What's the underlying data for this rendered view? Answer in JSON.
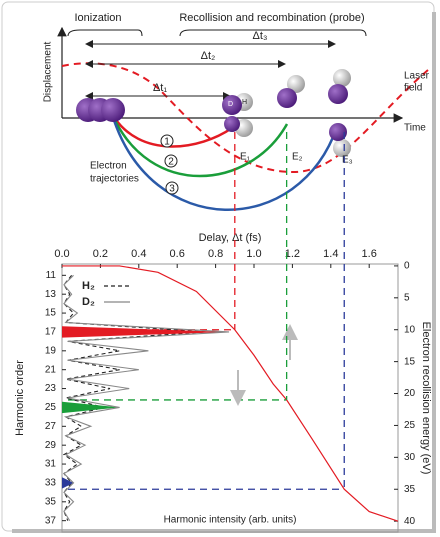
{
  "diagram": {
    "y_axis_label": "Displacement",
    "x_axis_label": "Time",
    "ionization": "Ionization",
    "recollision": "Recollision and recombination (probe)",
    "laser_field": [
      "Laser",
      "field"
    ],
    "trajectories_label": [
      "Electron",
      "trajectories"
    ],
    "intervals": [
      "Δt₁",
      "Δt₂",
      "Δt₃"
    ],
    "trajectory_numbers": [
      "1",
      "2",
      "3"
    ],
    "energies": [
      "E₁",
      "E₂",
      "E₃"
    ],
    "atom_labels": [
      "D",
      "H"
    ]
  },
  "chart_data": {
    "type": "line",
    "x_label": "Delay, Δt (fs)",
    "bottom_label": "Harmonic intensity (arb. units)",
    "xlim": [
      0,
      1.75
    ],
    "xticks": [
      {
        "value": 0,
        "label": "0.0"
      },
      0.2,
      0.4,
      0.6,
      0.8,
      {
        "value": 1,
        "label": "1.0"
      },
      1.2,
      1.4,
      1.6
    ],
    "y_label": "Harmonic order",
    "y_inverted": true,
    "ylim": [
      9.8,
      38.2
    ],
    "yticks": [
      11,
      13,
      15,
      17,
      19,
      21,
      23,
      25,
      27,
      29,
      31,
      33,
      35,
      37
    ],
    "y2_label": "Electron recollision energy (eV)",
    "y2lim": [
      -0.3,
      41.7
    ],
    "y2ticks": [
      0,
      5,
      10,
      15,
      20,
      25,
      30,
      35,
      40
    ],
    "recollision_curve": {
      "color": "#e31b23",
      "axis": "y2",
      "x": [
        0.3,
        0.5,
        0.7,
        0.9,
        1.0,
        1.1,
        1.17,
        1.3,
        1.47,
        1.6,
        1.75
      ],
      "values": [
        0,
        1,
        4,
        10,
        14,
        18.5,
        21,
        27,
        35,
        38.5,
        40
      ]
    },
    "series": [
      {
        "name": "H₂",
        "color": "#222222",
        "dash": true,
        "x": [
          11,
          12,
          13,
          14,
          15,
          16,
          17,
          18,
          19,
          20,
          21,
          22,
          23,
          24,
          25,
          26,
          27,
          28,
          29,
          30,
          31,
          32,
          33,
          34,
          35,
          36,
          37
        ],
        "values": [
          0.05,
          0.01,
          0.04,
          0.01,
          0.06,
          0.02,
          0.75,
          0.03,
          0.3,
          0.03,
          0.3,
          0.02,
          0.25,
          0.02,
          0.22,
          0.02,
          0.1,
          0.02,
          0.1,
          0.01,
          0.08,
          0.01,
          0.05,
          0.01,
          0.04,
          0.01,
          0.03
        ]
      },
      {
        "name": "D₂",
        "color": "#888888",
        "dash": false,
        "x": [
          11,
          12,
          13,
          14,
          15,
          16,
          17,
          18,
          19,
          20,
          21,
          22,
          23,
          24,
          25,
          26,
          27,
          28,
          29,
          30,
          31,
          32,
          33,
          34,
          35,
          36,
          37
        ],
        "values": [
          0.06,
          0.01,
          0.05,
          0.01,
          0.08,
          0.02,
          0.87,
          0.03,
          0.45,
          0.03,
          0.4,
          0.03,
          0.35,
          0.03,
          0.3,
          0.02,
          0.15,
          0.02,
          0.12,
          0.02,
          0.1,
          0.01,
          0.06,
          0.01,
          0.06,
          0.01,
          0.04
        ],
        "peak_colors": [
          null,
          null,
          null,
          null,
          null,
          null,
          "#e31b23",
          null,
          null,
          null,
          null,
          null,
          null,
          null,
          "#1a9e3a",
          null,
          null,
          null,
          null,
          null,
          null,
          null,
          "#2b3a9a",
          null,
          null,
          null,
          null
        ]
      }
    ],
    "guides": [
      {
        "delay": 0.9,
        "energy": 10,
        "color": "#e31b23"
      },
      {
        "delay": 1.17,
        "energy": 21,
        "color": "#1a9e3a"
      },
      {
        "delay": 1.47,
        "energy": 35,
        "color": "#2b3a9a"
      }
    ]
  }
}
